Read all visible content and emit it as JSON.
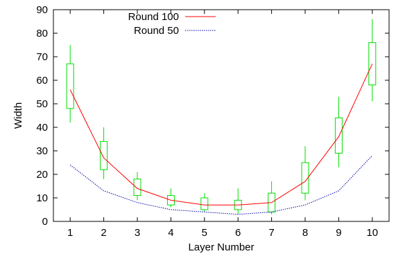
{
  "chart_data": {
    "type": "line",
    "title": "",
    "xlabel": "Layer Number",
    "ylabel": "Width",
    "x": [
      1,
      2,
      3,
      4,
      5,
      6,
      7,
      8,
      9,
      10
    ],
    "xlim": [
      0.5,
      10.5
    ],
    "ylim": [
      0,
      90
    ],
    "xticks": [
      1,
      2,
      3,
      4,
      5,
      6,
      7,
      8,
      9,
      10
    ],
    "yticks": [
      0,
      10,
      20,
      30,
      40,
      50,
      60,
      70,
      80,
      90
    ],
    "grid": false,
    "legend_position": "top-left",
    "series": [
      {
        "name": "Round 100",
        "style": "solid",
        "color": "#ff0000",
        "values": [
          56,
          27,
          14,
          9,
          7,
          7,
          8,
          17,
          36,
          67
        ]
      },
      {
        "name": "Round 50",
        "style": "dotted",
        "color": "#0000aa",
        "values": [
          24,
          13,
          8,
          5,
          4,
          3,
          4,
          7,
          13,
          28
        ]
      }
    ],
    "boxes": {
      "color": "#00dd00",
      "items": [
        {
          "x": 1,
          "low": 42,
          "q1": 48,
          "q3": 67,
          "high": 75
        },
        {
          "x": 2,
          "low": 18,
          "q1": 22,
          "q3": 34,
          "high": 40
        },
        {
          "x": 3,
          "low": 9,
          "q1": 11,
          "q3": 18,
          "high": 21
        },
        {
          "x": 4,
          "low": 6,
          "q1": 7,
          "q3": 11,
          "high": 14
        },
        {
          "x": 5,
          "low": 4,
          "q1": 5,
          "q3": 10,
          "high": 12
        },
        {
          "x": 6,
          "low": 3,
          "q1": 5,
          "q3": 9,
          "high": 14
        },
        {
          "x": 7,
          "low": 3,
          "q1": 4,
          "q3": 12,
          "high": 17
        },
        {
          "x": 8,
          "low": 9,
          "q1": 12,
          "q3": 25,
          "high": 32
        },
        {
          "x": 9,
          "low": 23,
          "q1": 29,
          "q3": 44,
          "high": 53
        },
        {
          "x": 10,
          "low": 51,
          "q1": 58,
          "q3": 76,
          "high": 86
        }
      ]
    }
  }
}
